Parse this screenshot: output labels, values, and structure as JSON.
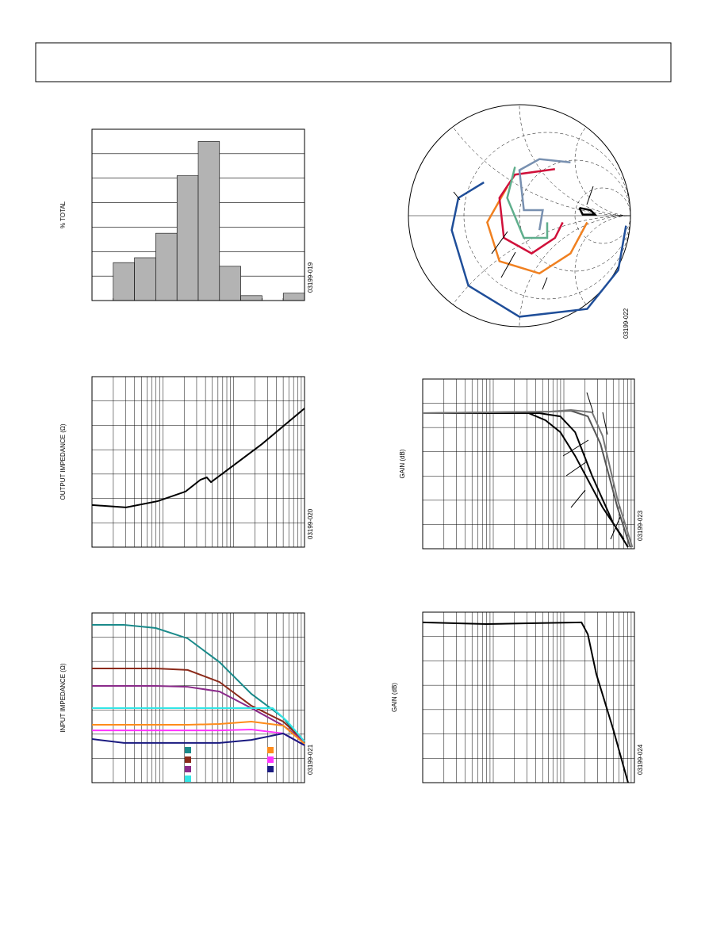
{
  "chart_data": [
    {
      "type": "histogram",
      "ylabel": "% TOTAL",
      "code": "03199-019",
      "bins": [
        0,
        1,
        2,
        3,
        4,
        5,
        6,
        7,
        8,
        9,
        10
      ],
      "values": [
        0,
        1.55,
        1.75,
        2.75,
        5.1,
        6.5,
        1.4,
        0.2,
        0,
        0.3
      ],
      "color": "#b3b3b3",
      "xlim": [
        0,
        10
      ],
      "ylim": [
        0,
        7
      ]
    },
    {
      "type": "smith",
      "code": "03199-022",
      "xlim": [
        -1,
        1
      ],
      "ylim": [
        -1,
        1
      ],
      "series": [
        {
          "color": "#1f4e99",
          "x": [
            -0.32,
            -0.55,
            -0.61,
            -0.46,
            0,
            0.61,
            0.89,
            0.96
          ],
          "values": [
            0.3,
            0.16,
            -0.13,
            -0.63,
            -0.91,
            -0.84,
            -0.49,
            -0.09
          ]
        },
        {
          "color": "#f08020",
          "x": [
            -0.11,
            -0.29,
            -0.18,
            0.18,
            0.46,
            0.61
          ],
          "values": [
            0.26,
            -0.06,
            -0.41,
            -0.52,
            -0.34,
            -0.06
          ]
        },
        {
          "color": "#d0103a",
          "x": [
            0.32,
            -0.04,
            -0.18,
            -0.14,
            0.11,
            0.32,
            0.39
          ],
          "values": [
            0.42,
            0.37,
            0.16,
            -0.2,
            -0.34,
            -0.2,
            -0.06
          ]
        },
        {
          "color": "#5fae8c",
          "x": [
            -0.04,
            -0.11,
            0.04,
            0.25,
            0.25
          ],
          "values": [
            0.44,
            0.16,
            -0.2,
            -0.2,
            -0.06
          ]
        },
        {
          "color": "#7890b0",
          "x": [
            0.46,
            0.18,
            0,
            0.04,
            0.21,
            0.18
          ],
          "values": [
            0.48,
            0.51,
            0.41,
            0.05,
            0.05,
            -0.13
          ]
        },
        {
          "color": "#000000",
          "x": [
            0.54,
            0.64,
            0.68,
            0.57,
            0.54
          ],
          "values": [
            0.07,
            0.05,
            0.01,
            0.01,
            0.07
          ]
        }
      ]
    },
    {
      "type": "line",
      "ylabel": "OUTPUT IMPEDANCE (Ω)",
      "code": "03199-020",
      "xlim": [
        0,
        100
      ],
      "ylim": [
        0,
        100
      ],
      "series": [
        {
          "color": "#000000",
          "x": [
            0,
            16,
            31,
            44,
            51,
            54,
            56,
            65,
            80,
            100
          ],
          "values": [
            24.7,
            23.3,
            27,
            32.6,
            39.5,
            40.9,
            38.1,
            46.5,
            60.5,
            81.4
          ]
        }
      ]
    },
    {
      "type": "line",
      "ylabel": "GAIN (dB)",
      "code": "03199-023",
      "xlim": [
        0,
        100
      ],
      "ylim": [
        0,
        100
      ],
      "series": [
        {
          "color": "#000000",
          "x": [
            0,
            50,
            58,
            65,
            72,
            85,
            95
          ],
          "values": [
            79.9,
            79.9,
            75.7,
            68.7,
            54.7,
            24.3,
            5.6
          ]
        },
        {
          "color": "#000000",
          "x": [
            0,
            55,
            65,
            72,
            80,
            90,
            97
          ],
          "values": [
            79.9,
            79.9,
            78,
            68.7,
            43,
            15,
            0.9
          ]
        },
        {
          "color": "#555555",
          "x": [
            0,
            60,
            70,
            78,
            84,
            92,
            98
          ],
          "values": [
            79.9,
            80.8,
            81.3,
            78,
            61.7,
            24.3,
            0.9
          ]
        },
        {
          "color": "#777777",
          "x": [
            0,
            60,
            70,
            80,
            85,
            92,
            99
          ],
          "values": [
            79.9,
            80.8,
            81.8,
            80.4,
            66.4,
            29,
            0.9
          ]
        }
      ]
    },
    {
      "type": "line",
      "ylabel": "INPUT IMPEDANCE (Ω)",
      "code": "03199-021",
      "legend": true,
      "xlim": [
        0,
        100
      ],
      "ylim": [
        0,
        100
      ],
      "series": [
        {
          "color": "#1a8a8a",
          "x": [
            0,
            15,
            30,
            45,
            60,
            75,
            90,
            100
          ],
          "values": [
            93,
            93,
            91.1,
            85,
            71,
            52.3,
            38.3,
            22
          ]
        },
        {
          "color": "#8b2a1a",
          "x": [
            0,
            15,
            30,
            45,
            60,
            75,
            90,
            100
          ],
          "values": [
            67.3,
            67.3,
            67.3,
            66.4,
            59.3,
            45.3,
            36,
            24.3
          ]
        },
        {
          "color": "#8a2a8a",
          "x": [
            0,
            15,
            30,
            45,
            60,
            75,
            90,
            100
          ],
          "values": [
            57,
            57,
            57,
            56.5,
            53.7,
            43.9,
            33.6,
            24.3
          ]
        },
        {
          "color": "#33e6e6",
          "x": [
            0,
            30,
            60,
            85,
            92,
            100
          ],
          "values": [
            43.9,
            43.9,
            43.9,
            43.9,
            36,
            24.3
          ]
        },
        {
          "color": "#ff8c1a",
          "x": [
            0,
            15,
            30,
            45,
            60,
            75,
            90,
            100
          ],
          "values": [
            34.1,
            34.1,
            34.1,
            34.1,
            34.6,
            36,
            33.6,
            22.9
          ]
        },
        {
          "color": "#ff33ff",
          "x": [
            0,
            15,
            30,
            45,
            60,
            75,
            90,
            100
          ],
          "values": [
            30.8,
            30.8,
            30.8,
            30.8,
            30.8,
            31.3,
            29,
            22
          ]
        },
        {
          "color": "#1a1a80",
          "x": [
            0,
            15,
            30,
            45,
            60,
            75,
            90,
            100
          ],
          "values": [
            25.7,
            23.4,
            23.4,
            23.4,
            23.4,
            25.2,
            29,
            22
          ]
        }
      ]
    },
    {
      "type": "line",
      "ylabel": "GAIN (dB)",
      "code": "03199-024",
      "xlim": [
        0,
        100
      ],
      "ylim": [
        0,
        100
      ],
      "series": [
        {
          "color": "#000000",
          "x": [
            0,
            30,
            50,
            75,
            78,
            82,
            90,
            97
          ],
          "values": [
            94,
            93,
            93.5,
            94,
            87,
            63.7,
            31.2,
            0
          ]
        }
      ]
    }
  ]
}
